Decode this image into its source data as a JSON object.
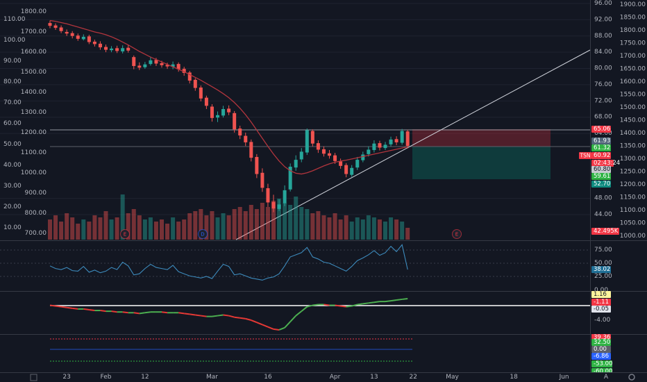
{
  "chart_data": {
    "type": "candlestick",
    "symbol": "TSN",
    "categories": [
      null,
      null,
      null,
      "23",
      null,
      null,
      null,
      null,
      null,
      null,
      "Feb",
      null,
      null,
      null,
      null,
      null,
      null,
      "12",
      null,
      null,
      null,
      null,
      null,
      null,
      null,
      null,
      null,
      null,
      null,
      "Mar",
      null,
      null,
      null,
      null,
      null,
      null,
      null,
      null,
      null,
      "16",
      null,
      null,
      null,
      null,
      null,
      null,
      null,
      null,
      null,
      null,
      null,
      "Apr",
      null,
      null,
      null,
      null,
      null,
      null,
      "13",
      null,
      null,
      null,
      null,
      null,
      null,
      "22",
      null,
      null,
      null,
      null,
      null,
      null,
      "May",
      null,
      null,
      null,
      null,
      null,
      null,
      null,
      null,
      null,
      null,
      "18",
      null,
      null,
      null,
      null,
      null,
      null,
      null,
      null,
      "Jun",
      null,
      null,
      null,
      null
    ],
    "open": [
      91.2,
      90.6,
      90.1,
      89.0,
      88.7,
      88.1,
      87.2,
      87.9,
      86.6,
      86.1,
      85.3,
      84.5,
      85.0,
      84.2,
      85.1,
      82.8,
      80.7,
      80.3,
      81.1,
      82.1,
      81.3,
      80.9,
      80.4,
      81.1,
      79.9,
      79.0,
      77.2,
      75.3,
      72.8,
      70.6,
      67.9,
      68.4,
      70.1,
      69.0,
      65.2,
      63.4,
      61.9,
      58.2,
      54.3,
      50.5,
      47.1,
      45.4,
      46.8,
      50.2,
      55.6,
      57.6,
      59.3,
      64.6,
      61.6,
      60.1,
      59.1,
      58.6,
      57.1,
      56.2,
      53.8,
      55.6,
      57.4,
      58.9,
      59.9,
      61.6,
      60.4,
      61.3,
      62.6,
      61.7,
      64.5,
      null,
      null,
      null,
      null,
      null,
      null,
      null,
      null,
      null,
      null,
      null,
      null,
      null,
      null,
      null,
      null,
      null,
      null,
      null,
      null,
      null,
      null,
      null,
      null,
      null,
      null,
      null,
      null,
      null,
      null,
      null,
      null
    ],
    "high": [
      91.8,
      91.1,
      90.6,
      89.6,
      89.2,
      88.6,
      88.4,
      88.3,
      87.1,
      86.7,
      85.9,
      85.5,
      85.6,
      85.7,
      85.8,
      83.2,
      81.5,
      81.6,
      82.9,
      82.6,
      81.9,
      81.4,
      81.7,
      81.5,
      80.4,
      79.4,
      77.6,
      75.8,
      73.3,
      71.2,
      69.4,
      70.8,
      70.9,
      69.5,
      65.9,
      64.2,
      62.5,
      58.9,
      55.4,
      51.6,
      48.9,
      47.8,
      51.2,
      56.6,
      58.6,
      60.4,
      65.2,
      65.0,
      62.3,
      60.8,
      59.9,
      59.2,
      57.8,
      56.7,
      56.2,
      58.2,
      59.5,
      60.8,
      62.3,
      62.2,
      61.9,
      63.2,
      63.3,
      65.1,
      64.9,
      null,
      null,
      null,
      null,
      null,
      null,
      null,
      null,
      null,
      null,
      null,
      null,
      null,
      null,
      null,
      null,
      null,
      null,
      null,
      null,
      null,
      null,
      null,
      null,
      null,
      null,
      null,
      null,
      null,
      null,
      null,
      null
    ],
    "low": [
      89.9,
      89.5,
      88.7,
      88.0,
      87.4,
      86.8,
      86.9,
      86.0,
      85.4,
      84.6,
      84.0,
      84.0,
      83.8,
      83.7,
      83.9,
      79.8,
      79.6,
      79.9,
      80.7,
      80.6,
      80.2,
      79.9,
      79.8,
      79.2,
      78.2,
      76.3,
      74.5,
      71.9,
      70.0,
      66.9,
      66.8,
      67.9,
      68.5,
      64.2,
      62.6,
      60.9,
      57.1,
      53.0,
      49.6,
      45.9,
      44.6,
      44.9,
      46.1,
      49.7,
      54.8,
      56.9,
      58.7,
      60.8,
      59.2,
      58.3,
      57.8,
      56.5,
      55.3,
      53.2,
      53.3,
      55.0,
      56.9,
      58.3,
      59.3,
      59.8,
      59.9,
      60.8,
      61.1,
      61.2,
      60.3,
      null,
      null,
      null,
      null,
      null,
      null,
      null,
      null,
      null,
      null,
      null,
      null,
      null,
      null,
      null,
      null,
      null,
      null,
      null,
      null,
      null,
      null,
      null,
      null,
      null,
      null,
      null,
      null,
      null,
      null,
      null,
      null
    ],
    "close": [
      90.5,
      90.0,
      89.2,
      88.6,
      88.0,
      87.3,
      87.8,
      86.5,
      86.0,
      85.2,
      84.6,
      84.9,
      84.3,
      85.0,
      84.4,
      80.6,
      80.2,
      81.0,
      82.0,
      81.2,
      80.8,
      80.5,
      81.0,
      79.8,
      78.9,
      77.0,
      75.2,
      72.6,
      70.8,
      67.8,
      68.5,
      70.0,
      69.2,
      65.0,
      63.5,
      61.8,
      58.0,
      54.0,
      50.6,
      47.0,
      45.5,
      46.5,
      50.0,
      55.8,
      57.5,
      59.5,
      64.8,
      61.5,
      60.0,
      59.0,
      58.5,
      57.2,
      56.0,
      54.0,
      55.5,
      57.5,
      58.8,
      60.0,
      61.5,
      60.5,
      61.2,
      62.5,
      61.8,
      64.6,
      60.92,
      null,
      null,
      null,
      null,
      null,
      null,
      null,
      null,
      null,
      null,
      null,
      null,
      null,
      null,
      null,
      null,
      null,
      null,
      null,
      null,
      null,
      null,
      null,
      null,
      null,
      null,
      null,
      null,
      null,
      null,
      null,
      null
    ],
    "volume": [
      14,
      16,
      13,
      17,
      15,
      12,
      14,
      13,
      16,
      15,
      18,
      14,
      15,
      26,
      17,
      19,
      16,
      14,
      15,
      13,
      14,
      12,
      15,
      13,
      14,
      17,
      18,
      19,
      16,
      18,
      15,
      17,
      16,
      19,
      20,
      18,
      21,
      19,
      22,
      20,
      23,
      24,
      22,
      21,
      25,
      20,
      19,
      17,
      18,
      16,
      15,
      17,
      14,
      16,
      13,
      15,
      14,
      16,
      15,
      14,
      13,
      15,
      14,
      13,
      10,
      null,
      null,
      null,
      null,
      null,
      null,
      null,
      null,
      null,
      null,
      null,
      null,
      null,
      null,
      null,
      null,
      null,
      null,
      null,
      null,
      null,
      null,
      null,
      null,
      null,
      null,
      null,
      null,
      null,
      null,
      null,
      null
    ],
    "ma": [
      91.8,
      91.6,
      91.3,
      91.0,
      90.6,
      90.2,
      89.8,
      89.4,
      89.0,
      88.7,
      88.3,
      87.8,
      87.2,
      86.5,
      85.8,
      85.0,
      84.2,
      83.5,
      82.8,
      82.2,
      81.6,
      81.0,
      80.4,
      79.8,
      79.2,
      78.5,
      77.8,
      77.1,
      76.3,
      75.5,
      74.7,
      73.8,
      72.8,
      71.6,
      70.2,
      68.6,
      66.8,
      64.8,
      62.8,
      60.8,
      58.9,
      57.2,
      55.8,
      54.8,
      54.2,
      54.0,
      54.3,
      54.8,
      55.4,
      56.0,
      56.5,
      56.9,
      57.2,
      57.4,
      57.7,
      58.0,
      58.3,
      58.6,
      58.9,
      59.2,
      59.5,
      59.8,
      60.1,
      60.4,
      60.7,
      null,
      null,
      null,
      null,
      null,
      null,
      null,
      null,
      null,
      null,
      null,
      null,
      null,
      null,
      null,
      null,
      null,
      null,
      null,
      null,
      null,
      null,
      null,
      null,
      null,
      null,
      null,
      null,
      null,
      null,
      null,
      null
    ],
    "rsi": [
      45,
      40,
      38,
      42,
      36,
      35,
      44,
      33,
      37,
      32,
      35,
      42,
      38,
      52,
      45,
      28,
      30,
      40,
      48,
      42,
      40,
      38,
      46,
      34,
      30,
      26,
      24,
      22,
      25,
      21,
      35,
      48,
      44,
      28,
      30,
      26,
      22,
      20,
      18,
      22,
      24,
      30,
      45,
      62,
      66,
      70,
      80,
      62,
      58,
      52,
      50,
      45,
      40,
      35,
      44,
      55,
      60,
      66,
      74,
      65,
      70,
      82,
      72,
      85,
      38.02,
      null,
      null,
      null,
      null,
      null,
      null,
      null,
      null,
      null,
      null,
      null,
      null,
      null,
      null,
      null,
      null,
      null,
      null,
      null,
      null,
      null,
      null,
      null,
      null,
      null,
      null,
      null,
      null,
      null,
      null,
      null,
      null
    ],
    "macd": [
      -2.0,
      -2.1,
      -2.2,
      -2.3,
      -2.4,
      -2.5,
      -2.5,
      -2.6,
      -2.7,
      -2.7,
      -2.8,
      -2.8,
      -2.9,
      -2.9,
      -3.0,
      -3.0,
      -3.1,
      -3.0,
      -2.9,
      -2.9,
      -2.9,
      -3.0,
      -3.0,
      -3.0,
      -3.1,
      -3.2,
      -3.3,
      -3.4,
      -3.5,
      -3.5,
      -3.4,
      -3.3,
      -3.4,
      -3.6,
      -3.7,
      -3.8,
      -4.0,
      -4.3,
      -4.6,
      -4.9,
      -5.2,
      -5.3,
      -5.0,
      -4.2,
      -3.4,
      -2.8,
      -2.2,
      -2.0,
      -1.9,
      -1.9,
      -2.0,
      -2.0,
      -2.1,
      -2.2,
      -2.1,
      -1.9,
      -1.8,
      -1.7,
      -1.6,
      -1.5,
      -1.5,
      -1.4,
      -1.3,
      -1.2,
      -1.11,
      null,
      null,
      null,
      null,
      null,
      null,
      null,
      null,
      null,
      null,
      null,
      null,
      null,
      null,
      null,
      null,
      null,
      null,
      null,
      null,
      null,
      null,
      null,
      null,
      null,
      null,
      null,
      null,
      null,
      null,
      null,
      null
    ],
    "up_color": "#26a69a",
    "down_color": "#ef5350",
    "ma_color": "#b2353d",
    "rsi_color": "#3d8bbd",
    "macd_colors": [
      "#4caf50",
      "#e53935"
    ],
    "grid": true,
    "ylim": [
      37.84,
      96.86
    ],
    "yticks": [
      {
        "value": 44,
        "label": "44.00"
      },
      {
        "value": 48,
        "label": "48.00"
      },
      {
        "value": 64,
        "label": "64.00"
      },
      {
        "value": 68,
        "label": "68.00"
      },
      {
        "value": 72,
        "label": "72.00"
      },
      {
        "value": 76,
        "label": "76.00"
      },
      {
        "value": 80,
        "label": "80.00"
      },
      {
        "value": 84,
        "label": "84.00"
      },
      {
        "value": 88,
        "label": "88.00"
      },
      {
        "value": 92,
        "label": "92.00"
      },
      {
        "value": 96,
        "label": "96.00"
      }
    ],
    "y2lim": [
      986.5,
      1918.9
    ],
    "y2ticks": [
      {
        "value": 1000,
        "label": "1000.00"
      },
      {
        "value": 1050,
        "label": "1050.00"
      },
      {
        "value": 1100,
        "label": "1100.00"
      },
      {
        "value": 1150,
        "label": "1150.00"
      },
      {
        "value": 1200,
        "label": "1200.00"
      },
      {
        "value": 1250,
        "label": "1250.00"
      },
      {
        "value": 1300,
        "label": "1300.00"
      },
      {
        "value": 1350,
        "label": "1350.00"
      },
      {
        "value": 1400,
        "label": "1400.00"
      },
      {
        "value": 1450,
        "label": "1450.00"
      },
      {
        "value": 1500,
        "label": "1500.00"
      },
      {
        "value": 1550,
        "label": "1550.00"
      },
      {
        "value": 1600,
        "label": "1600.00"
      },
      {
        "value": 1650,
        "label": "1650.00"
      },
      {
        "value": 1700,
        "label": "1700.00"
      },
      {
        "value": 1750,
        "label": "1750.00"
      },
      {
        "value": 1800,
        "label": "1800.00"
      },
      {
        "value": 1850,
        "label": "1850.00"
      },
      {
        "value": 1900,
        "label": "1900.00"
      }
    ],
    "y3lim": [
      669,
      1858.6
    ],
    "y3ticks": [
      {
        "value": 700,
        "label": "700.00"
      },
      {
        "value": 800,
        "label": "800.00"
      },
      {
        "value": 900,
        "label": "900.00"
      },
      {
        "value": 1000,
        "label": "1000.00"
      },
      {
        "value": 1100,
        "label": "1100.00"
      },
      {
        "value": 1200,
        "label": "1200.00"
      },
      {
        "value": 1300,
        "label": "1300.00"
      },
      {
        "value": 1400,
        "label": "1400.00"
      },
      {
        "value": 1500,
        "label": "1500.00"
      },
      {
        "value": 1600,
        "label": "1600.00"
      },
      {
        "value": 1700,
        "label": "1700.00"
      },
      {
        "value": 1800,
        "label": "1800.00"
      }
    ],
    "y4lim": [
      4.33,
      119.3
    ],
    "y4ticks": [
      {
        "value": 10,
        "label": "10.00"
      },
      {
        "value": 20,
        "label": "20.00"
      },
      {
        "value": 30,
        "label": "30.00"
      },
      {
        "value": 40,
        "label": "40.00"
      },
      {
        "value": 50,
        "label": "50.00"
      },
      {
        "value": 60,
        "label": "60.00"
      },
      {
        "value": 70,
        "label": "70.00"
      },
      {
        "value": 80,
        "label": "80.00"
      },
      {
        "value": 90,
        "label": "90.00"
      },
      {
        "value": 100,
        "label": "100.00"
      },
      {
        "value": 110,
        "label": "110.00"
      }
    ],
    "rsi_ylim": [
      -1.3,
      90.8
    ],
    "rsi_yticks": [
      {
        "value": 25,
        "label": "25.00"
      },
      {
        "value": 50,
        "label": "50.00"
      },
      {
        "value": 75,
        "label": "75.00"
      }
    ],
    "macd_ylim": [
      -5.86,
      0.19
    ],
    "macd_yticks": [
      {
        "value": 0,
        "label": "0.00"
      },
      {
        "value": -4,
        "label": "-4.00"
      }
    ],
    "price_labels": [
      {
        "text": "65.06",
        "color": "#f23645"
      },
      {
        "text": "61.93",
        "color": "#4f6478"
      },
      {
        "text": "61.32",
        "color": "#2fb344"
      },
      {
        "text": "60.92",
        "color": "#f23645"
      },
      {
        "text": "02:43:24",
        "color": "#f23645"
      },
      {
        "text": "60.80",
        "color": "#c8cad0",
        "text_color": "#131722"
      },
      {
        "text": "59.61",
        "color": "#2fb344"
      },
      {
        "text": "52.70",
        "color": "#0e8a7e"
      },
      {
        "text": "42.495K",
        "color": "#f23645"
      }
    ],
    "macd_labels": [
      {
        "text": "1.16",
        "color": "#fff59d",
        "text_color": "#131722"
      },
      {
        "text": "-1.11",
        "color": "#f23645"
      },
      {
        "text": "-0.05",
        "color": "#e0e3eb",
        "text_color": "#131722"
      }
    ],
    "lower_labels": [
      {
        "text": "39.36",
        "color": "#f23645"
      },
      {
        "text": "32.50",
        "color": "#2fb344"
      },
      {
        "text": "0.00",
        "color": "#5d606b"
      },
      {
        "text": "-6.86",
        "color": "#2962ff"
      },
      {
        "text": "-53.00",
        "color": "#2fb344"
      },
      {
        "text": "-60.00",
        "color": "#2fb344"
      }
    ],
    "event_markers": [
      {
        "text": "E",
        "color": "#f23645"
      },
      {
        "text": "D",
        "color": "#2962ff"
      },
      {
        "text": "E",
        "color": "#f23645"
      }
    ],
    "corner_button": "A"
  }
}
